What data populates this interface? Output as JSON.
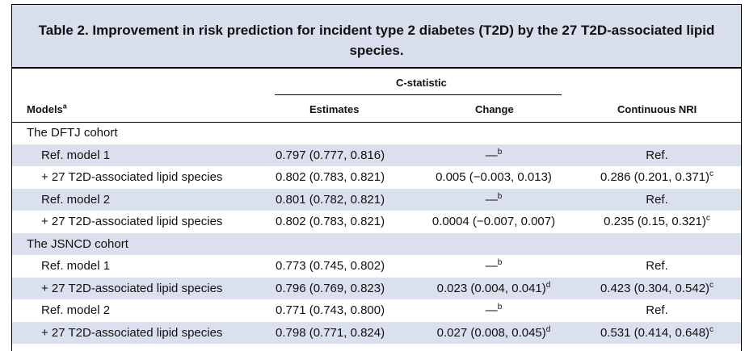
{
  "title": {
    "line1": "Table 2.  Improvement in risk prediction for incident type 2 diabetes (T2D) by the 27 T2D-associated lipid",
    "line2": "species."
  },
  "header": {
    "group": "C-statistic",
    "models": "Models",
    "models_sup": "a",
    "estimates": "Estimates",
    "change": "Change",
    "nri": "Continuous NRI"
  },
  "rows": [
    {
      "model": "The DFTJ cohort",
      "section": true
    },
    {
      "model": "Ref. model 1",
      "estimate": "0.797 (0.777, 0.816)",
      "change": "—",
      "change_sup": "b",
      "nri": "Ref.",
      "nri_sup": ""
    },
    {
      "model": "+ 27 T2D-associated lipid species",
      "estimate": "0.802 (0.783, 0.821)",
      "change": "0.005 (−0.003, 0.013)",
      "change_sup": "",
      "nri": "0.286 (0.201, 0.371)",
      "nri_sup": "c"
    },
    {
      "model": "Ref. model 2",
      "estimate": "0.801 (0.782, 0.821)",
      "change": "—",
      "change_sup": "b",
      "nri": "Ref.",
      "nri_sup": ""
    },
    {
      "model": "+ 27 T2D-associated lipid species",
      "estimate": "0.802 (0.783, 0.821)",
      "change": "0.0004 (−0.007, 0.007)",
      "change_sup": "",
      "nri": "0.235 (0.15, 0.321)",
      "nri_sup": "c"
    },
    {
      "model": "The JSNCD cohort",
      "section": true
    },
    {
      "model": "Ref. model 1",
      "estimate": "0.773 (0.745, 0.802)",
      "change": "—",
      "change_sup": "b",
      "nri": "Ref.",
      "nri_sup": ""
    },
    {
      "model": "+ 27 T2D-associated lipid species",
      "estimate": "0.796 (0.769, 0.823)",
      "change": "0.023 (0.004, 0.041)",
      "change_sup": "d",
      "nri": "0.423 (0.304, 0.542)",
      "nri_sup": "c"
    },
    {
      "model": "Ref. model 2",
      "estimate": "0.771 (0.743, 0.800)",
      "change": "—",
      "change_sup": "b",
      "nri": "Ref.",
      "nri_sup": ""
    },
    {
      "model": "+ 27 T2D-associated lipid species",
      "estimate": "0.798 (0.771, 0.824)",
      "change": "0.027 (0.008, 0.045)",
      "change_sup": "d",
      "nri": "0.531 (0.414, 0.648)",
      "nri_sup": "c"
    }
  ],
  "colors": {
    "shade": "#dbe0ee",
    "title_bg": "#d9deed"
  }
}
